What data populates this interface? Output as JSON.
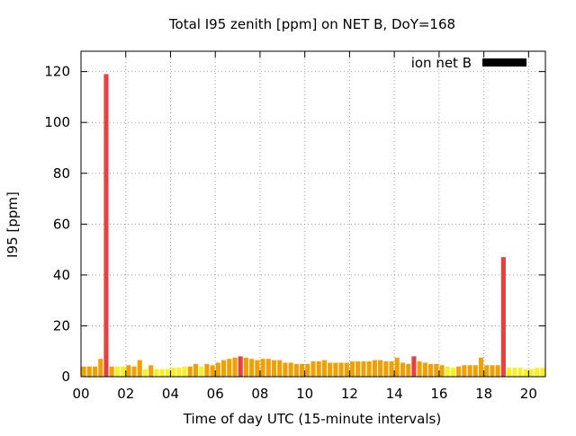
{
  "chart_data": {
    "type": "bar",
    "title": "Total I95 zenith [ppm] on NET B, DoY=168",
    "xlabel": "Time of day UTC (15-minute intervals)",
    "ylabel": "I95 [ppm]",
    "legend": {
      "label": "ion net B",
      "placement": "top-right",
      "color": "#000000"
    },
    "xlim": [
      0,
      20.75
    ],
    "ylim": [
      0,
      128
    ],
    "grid": true,
    "x_ticks": [
      {
        "value": 0,
        "label": "00"
      },
      {
        "value": 2,
        "label": "02"
      },
      {
        "value": 4,
        "label": "04"
      },
      {
        "value": 6,
        "label": "06"
      },
      {
        "value": 8,
        "label": "08"
      },
      {
        "value": 10,
        "label": "10"
      },
      {
        "value": 12,
        "label": "12"
      },
      {
        "value": 14,
        "label": "14"
      },
      {
        "value": 16,
        "label": "16"
      },
      {
        "value": 18,
        "label": "18"
      },
      {
        "value": 20,
        "label": "20"
      }
    ],
    "y_ticks": [
      {
        "value": 0,
        "label": "0"
      },
      {
        "value": 20,
        "label": "20"
      },
      {
        "value": 40,
        "label": "40"
      },
      {
        "value": 60,
        "label": "60"
      },
      {
        "value": 80,
        "label": "80"
      },
      {
        "value": 100,
        "label": "100"
      },
      {
        "value": 120,
        "label": "120"
      }
    ],
    "bar_step_hours": 0.25,
    "colors": {
      "high": "#e84040",
      "medium": "#f0a000",
      "low": "#f8f020"
    },
    "values": [
      4,
      4,
      4,
      7,
      119,
      4,
      4,
      4,
      4.5,
      4,
      6.5,
      3,
      4.5,
      3,
      3,
      3,
      3.5,
      3.5,
      4,
      4,
      5,
      4,
      5,
      4.5,
      5.5,
      6.5,
      7,
      7.5,
      8,
      7.5,
      7,
      6.5,
      7,
      7,
      6.5,
      6.5,
      5.5,
      5.5,
      5,
      5,
      5,
      6,
      6,
      6.5,
      5.5,
      5.5,
      5.5,
      5.5,
      6,
      6,
      6,
      6,
      6.5,
      6.5,
      6,
      6,
      7.5,
      5.5,
      5,
      8,
      6,
      5.5,
      5,
      5,
      4.5,
      4,
      3.5,
      4,
      4.5,
      4.5,
      4.5,
      7.5,
      4.5,
      4.5,
      4.5,
      47,
      3.5,
      3.5,
      3.5,
      3,
      3,
      3.5,
      3.5
    ],
    "levels": [
      "m",
      "m",
      "m",
      "m",
      "h",
      "m",
      "l",
      "l",
      "m",
      "m",
      "m",
      "l",
      "m",
      "l",
      "l",
      "l",
      "l",
      "l",
      "l",
      "m",
      "m",
      "l",
      "m",
      "m",
      "m",
      "m",
      "m",
      "m",
      "h",
      "m",
      "m",
      "m",
      "m",
      "m",
      "m",
      "m",
      "m",
      "m",
      "m",
      "m",
      "m",
      "m",
      "m",
      "m",
      "m",
      "m",
      "m",
      "m",
      "m",
      "m",
      "m",
      "m",
      "m",
      "m",
      "m",
      "m",
      "m",
      "m",
      "m",
      "h",
      "m",
      "m",
      "m",
      "m",
      "m",
      "l",
      "l",
      "m",
      "m",
      "m",
      "m",
      "m",
      "m",
      "m",
      "m",
      "h",
      "l",
      "l",
      "l",
      "l",
      "l",
      "l",
      "l"
    ]
  }
}
